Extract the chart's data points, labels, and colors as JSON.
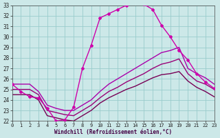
{
  "xlabel": "Windchill (Refroidissement éolien,°C)",
  "xlim": [
    0,
    23
  ],
  "ylim": [
    22,
    33
  ],
  "yticks": [
    22,
    23,
    24,
    25,
    26,
    27,
    28,
    29,
    30,
    31,
    32,
    33
  ],
  "xticks": [
    0,
    1,
    2,
    3,
    4,
    5,
    6,
    7,
    8,
    9,
    10,
    11,
    12,
    13,
    14,
    15,
    16,
    17,
    18,
    19,
    20,
    21,
    22,
    23
  ],
  "background_color": "#cce8e8",
  "grid_color": "#99cccc",
  "curve_main": {
    "x": [
      0,
      1,
      2,
      3,
      4,
      5,
      6,
      7,
      8,
      9,
      10,
      11,
      12,
      13,
      14,
      15,
      16,
      17,
      18,
      19,
      20,
      21,
      22,
      23
    ],
    "y": [
      25.5,
      24.8,
      24.3,
      24.2,
      23.2,
      22.0,
      22.1,
      23.3,
      27.0,
      29.2,
      31.8,
      32.2,
      32.6,
      33.0,
      33.4,
      33.1,
      32.6,
      31.1,
      30.0,
      28.7,
      27.8,
      26.5,
      25.7,
      25.1
    ],
    "color": "#cc00aa",
    "lw": 1.0,
    "marker": "D",
    "ms": 2.0
  },
  "curve2": {
    "x": [
      0,
      1,
      2,
      3,
      4,
      5,
      6,
      7,
      8,
      9,
      10,
      11,
      12,
      13,
      14,
      15,
      16,
      17,
      18,
      19,
      20,
      21,
      22,
      23
    ],
    "y": [
      25.5,
      25.5,
      25.5,
      24.8,
      23.5,
      23.2,
      23.0,
      23.0,
      23.5,
      24.0,
      24.8,
      25.5,
      26.0,
      26.5,
      27.0,
      27.5,
      28.0,
      28.5,
      28.7,
      29.0,
      27.0,
      26.5,
      26.1,
      25.5
    ],
    "color": "#aa00aa",
    "lw": 1.0
  },
  "curve3": {
    "x": [
      0,
      1,
      2,
      3,
      4,
      5,
      6,
      7,
      8,
      9,
      10,
      11,
      12,
      13,
      14,
      15,
      16,
      17,
      18,
      19,
      20,
      21,
      22,
      23
    ],
    "y": [
      25.0,
      25.0,
      25.0,
      24.5,
      23.0,
      22.8,
      22.6,
      22.5,
      23.0,
      23.5,
      24.2,
      24.8,
      25.2,
      25.7,
      26.1,
      26.5,
      27.0,
      27.4,
      27.6,
      27.9,
      26.5,
      25.8,
      25.5,
      25.0
    ],
    "color": "#990077",
    "lw": 1.0
  },
  "curve4": {
    "x": [
      0,
      1,
      2,
      3,
      4,
      5,
      6,
      7,
      8,
      9,
      10,
      11,
      12,
      13,
      14,
      15,
      16,
      17,
      18,
      19,
      20,
      21,
      22,
      23
    ],
    "y": [
      24.5,
      24.5,
      24.5,
      24.0,
      22.5,
      22.3,
      22.1,
      22.0,
      22.5,
      23.0,
      23.7,
      24.2,
      24.6,
      25.0,
      25.3,
      25.7,
      26.1,
      26.4,
      26.5,
      26.7,
      25.8,
      25.2,
      24.8,
      24.3
    ],
    "color": "#770055",
    "lw": 1.0
  }
}
